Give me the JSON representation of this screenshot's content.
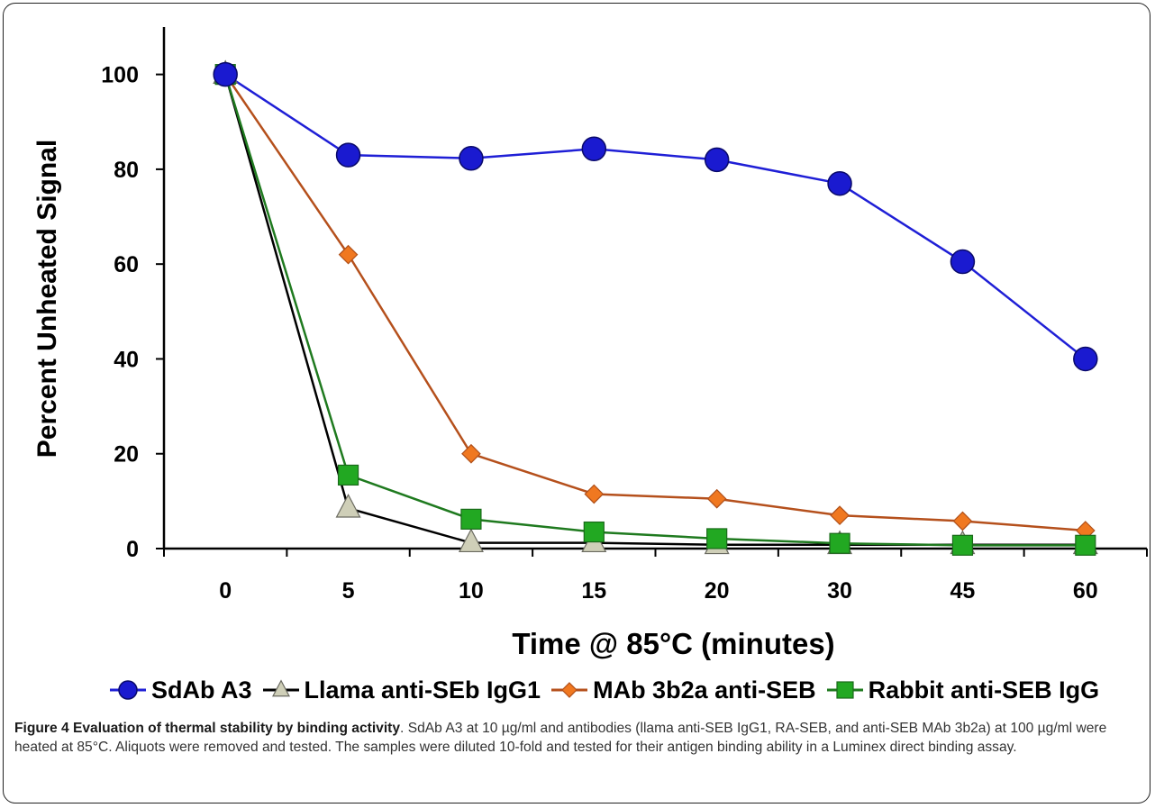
{
  "chart_data": {
    "type": "line",
    "categories": [
      "0",
      "5",
      "10",
      "15",
      "20",
      "30",
      "45",
      "60"
    ],
    "ylabel": "Percent Unheated Signal",
    "xlabel": "Time @ 85°C (minutes)",
    "ylim": [
      0,
      110
    ],
    "yticks": [
      0,
      20,
      40,
      60,
      80,
      100
    ],
    "grid": false,
    "legend_position": "bottom",
    "series": [
      {
        "name": "SdAb A3",
        "values": [
          100,
          83,
          82.3,
          84.3,
          82,
          77,
          60.5,
          40
        ],
        "color": "#1f1fd6",
        "marker": "circle",
        "marker_fill": "#1a1ad0"
      },
      {
        "name": "Llama anti-SEb IgG1",
        "values": [
          100,
          8.5,
          1.2,
          1.2,
          0.8,
          0.8,
          0.8,
          0.8
        ],
        "color": "#000000",
        "marker": "triangle",
        "marker_fill": "#cfcfb8"
      },
      {
        "name": "MAb 3b2a anti-SEB",
        "values": [
          100,
          62,
          20,
          11.5,
          10.5,
          7,
          5.8,
          3.8
        ],
        "color": "#b5501c",
        "marker": "diamond",
        "marker_fill": "#f07820"
      },
      {
        "name": "Rabbit anti-SEB IgG",
        "values": [
          100,
          15.5,
          6.2,
          3.5,
          2.1,
          1.1,
          0.7,
          0.7
        ],
        "color": "#1f7a1f",
        "marker": "square",
        "marker_fill": "#22a822"
      }
    ]
  },
  "caption": {
    "title": "Figure 4 Evaluation of thermal stability by binding activity",
    "text": ". SdAb A3 at 10 µg/ml and antibodies (llama anti-SEB IgG1, RA-SEB, and anti-SEB MAb 3b2a) at 100 µg/ml were heated at 85°C. Aliquots were removed and tested. The samples were diluted 10-fold and tested for their antigen binding ability in a Luminex direct binding assay."
  }
}
